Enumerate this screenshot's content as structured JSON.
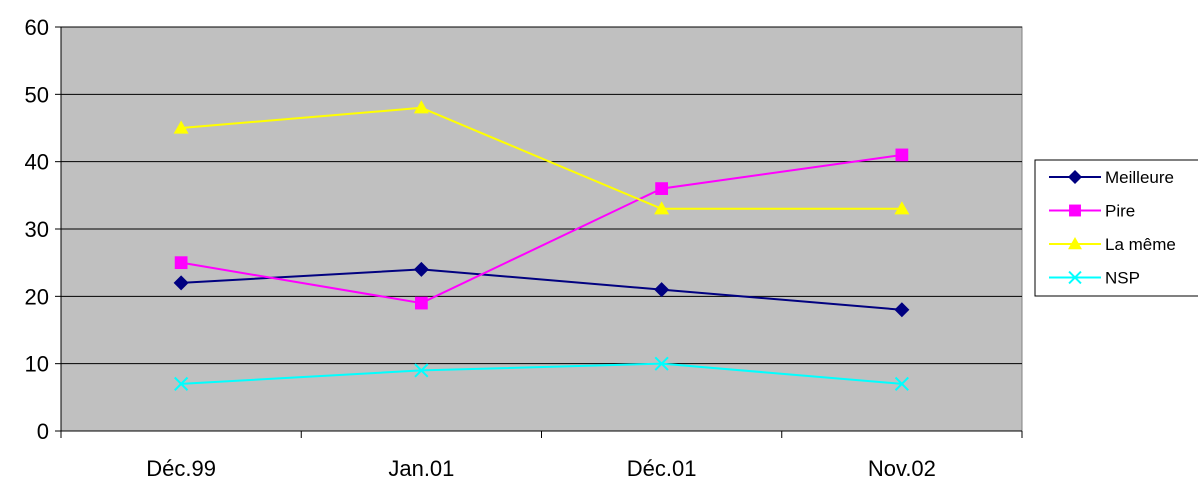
{
  "chart_data": {
    "type": "line",
    "title": "",
    "xlabel": "",
    "ylabel": "",
    "categories": [
      "Déc.99",
      "Jan.01",
      "Déc.01",
      "Nov.02"
    ],
    "ylim": [
      0,
      60
    ],
    "yticks": [
      "0",
      "10",
      "20",
      "30",
      "40",
      "50",
      "60"
    ],
    "grid": true,
    "plot_background": "#c0c0c0",
    "legend_position": "right",
    "series": [
      {
        "name": "Meilleure",
        "values": [
          22,
          24,
          21,
          18
        ],
        "color": "#000080",
        "marker": "diamond"
      },
      {
        "name": "Pire",
        "values": [
          25,
          19,
          36,
          41
        ],
        "color": "#ff00ff",
        "marker": "square"
      },
      {
        "name": "La même",
        "values": [
          45,
          48,
          33,
          33
        ],
        "color": "#ffff00",
        "marker": "triangle"
      },
      {
        "name": "NSP",
        "values": [
          7,
          9,
          10,
          7
        ],
        "color": "#00ffff",
        "marker": "x"
      }
    ]
  }
}
